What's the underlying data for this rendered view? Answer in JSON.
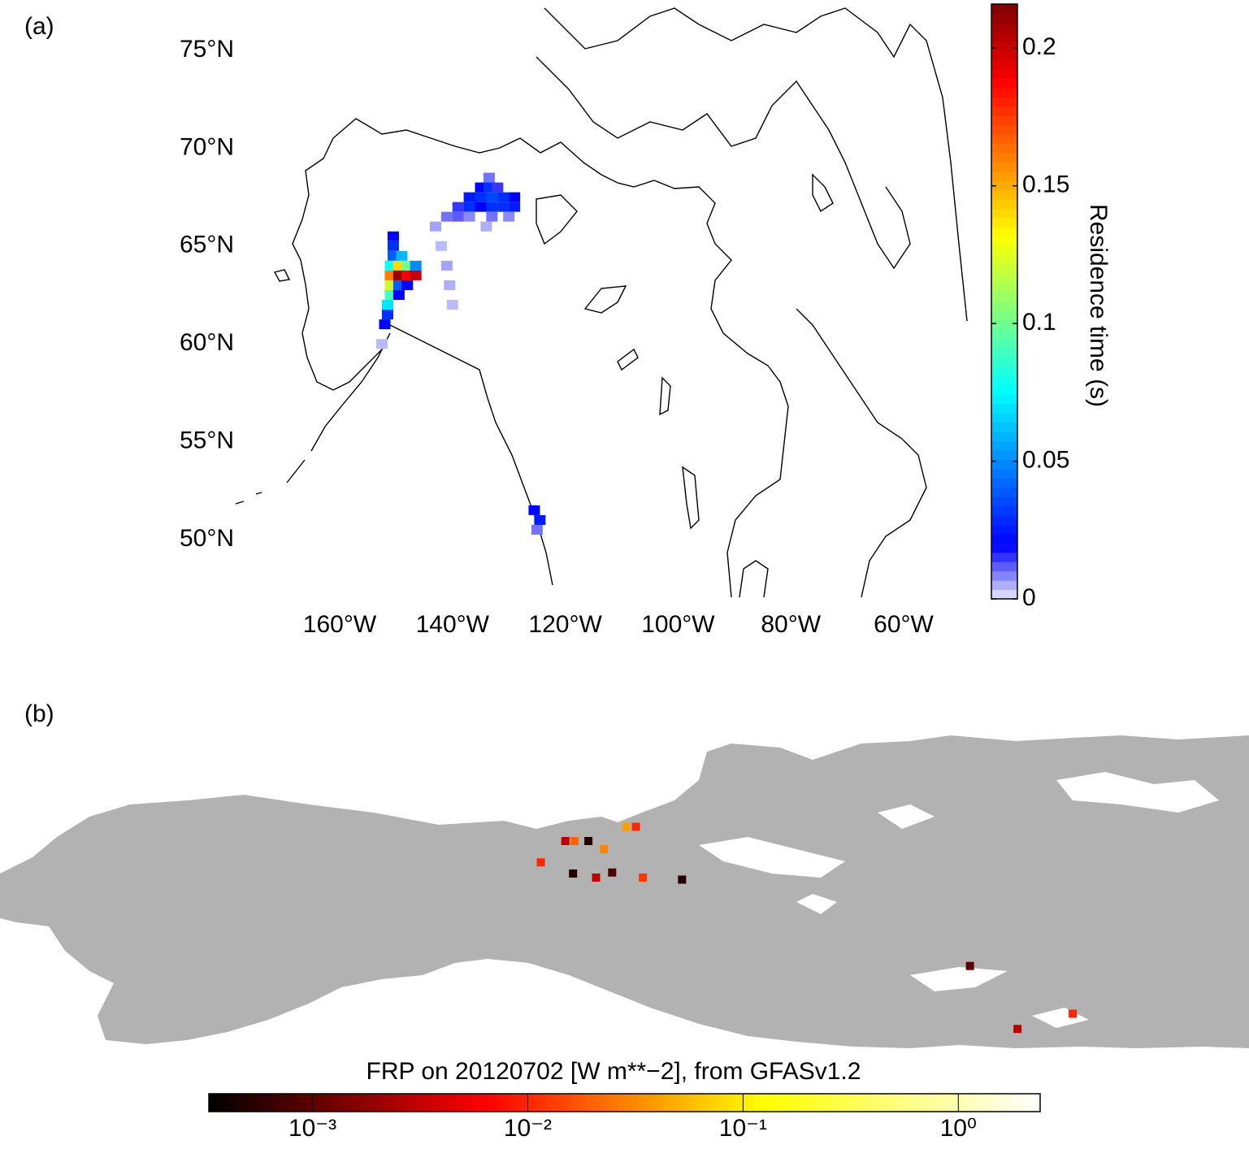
{
  "panels": [
    {
      "label": "(a)",
      "type": "heatmap",
      "lat_ticks": [
        {
          "value": 75,
          "label": "75°N"
        },
        {
          "value": 70,
          "label": "70°N"
        },
        {
          "value": 65,
          "label": "65°N"
        },
        {
          "value": 60,
          "label": "60°N"
        },
        {
          "value": 55,
          "label": "55°N"
        },
        {
          "value": 50,
          "label": "50°N"
        }
      ],
      "lon_ticks": [
        {
          "value": -160,
          "label": "160°W"
        },
        {
          "value": -140,
          "label": "140°W"
        },
        {
          "value": -120,
          "label": "120°W"
        },
        {
          "value": -100,
          "label": "100°W"
        },
        {
          "value": -80,
          "label": "80°W"
        },
        {
          "value": -60,
          "label": "60°W"
        }
      ],
      "colorbar": {
        "label": "Residence time (s)",
        "lim": [
          0,
          0.216
        ],
        "ticks": [
          0,
          0.05,
          0.1,
          0.15,
          0.2
        ],
        "colormap": "jet"
      },
      "cells": [
        {
          "lon": -150.5,
          "lat": 65.5,
          "value": 0.02
        },
        {
          "lon": -150.5,
          "lat": 65,
          "value": 0.03
        },
        {
          "lon": -150.5,
          "lat": 64.5,
          "value": 0.04
        },
        {
          "lon": -149,
          "lat": 64.5,
          "value": 0.06
        },
        {
          "lon": -151,
          "lat": 64,
          "value": 0.08
        },
        {
          "lon": -149.5,
          "lat": 64,
          "value": 0.14
        },
        {
          "lon": -148,
          "lat": 64,
          "value": 0.1
        },
        {
          "lon": -146.5,
          "lat": 64,
          "value": 0.05
        },
        {
          "lon": -151,
          "lat": 63.5,
          "value": 0.16
        },
        {
          "lon": -149.5,
          "lat": 63.5,
          "value": 0.21
        },
        {
          "lon": -148,
          "lat": 63.5,
          "value": 0.19
        },
        {
          "lon": -146.5,
          "lat": 63.5,
          "value": 0.2
        },
        {
          "lon": -151,
          "lat": 63,
          "value": 0.12
        },
        {
          "lon": -149.5,
          "lat": 63,
          "value": 0.04
        },
        {
          "lon": -148,
          "lat": 63,
          "value": 0.02
        },
        {
          "lon": -151,
          "lat": 62.5,
          "value": 0.09
        },
        {
          "lon": -149.5,
          "lat": 62.5,
          "value": 0.02
        },
        {
          "lon": -151.5,
          "lat": 62,
          "value": 0.07
        },
        {
          "lon": -151.5,
          "lat": 61.5,
          "value": 0.03
        },
        {
          "lon": -152,
          "lat": 61,
          "value": 0.02
        },
        {
          "lon": -152.5,
          "lat": 60,
          "value": 0.004
        },
        {
          "lon": -133.5,
          "lat": 68.5,
          "value": 0.01
        },
        {
          "lon": -135,
          "lat": 68,
          "value": 0.02
        },
        {
          "lon": -133.5,
          "lat": 68,
          "value": 0.03
        },
        {
          "lon": -132,
          "lat": 68,
          "value": 0.015
        },
        {
          "lon": -137,
          "lat": 67.5,
          "value": 0.025
        },
        {
          "lon": -135,
          "lat": 67.5,
          "value": 0.03
        },
        {
          "lon": -133,
          "lat": 67.5,
          "value": 0.035
        },
        {
          "lon": -131,
          "lat": 67.5,
          "value": 0.03
        },
        {
          "lon": -129,
          "lat": 67.5,
          "value": 0.02
        },
        {
          "lon": -139,
          "lat": 67,
          "value": 0.015
        },
        {
          "lon": -137,
          "lat": 67,
          "value": 0.03
        },
        {
          "lon": -135,
          "lat": 67,
          "value": 0.02
        },
        {
          "lon": -133,
          "lat": 67,
          "value": 0.03
        },
        {
          "lon": -131,
          "lat": 67,
          "value": 0.03
        },
        {
          "lon": -129,
          "lat": 67,
          "value": 0.025
        },
        {
          "lon": -141,
          "lat": 66.5,
          "value": 0.01
        },
        {
          "lon": -139,
          "lat": 66.5,
          "value": 0.012
        },
        {
          "lon": -137,
          "lat": 66.5,
          "value": 0.008
        },
        {
          "lon": -133,
          "lat": 66.5,
          "value": 0.01
        },
        {
          "lon": -130,
          "lat": 66.5,
          "value": 0.008
        },
        {
          "lon": -143,
          "lat": 66,
          "value": 0.006
        },
        {
          "lon": -134,
          "lat": 66,
          "value": 0.005
        },
        {
          "lon": -142,
          "lat": 65,
          "value": 0.004
        },
        {
          "lon": -141,
          "lat": 64,
          "value": 0.006
        },
        {
          "lon": -140.5,
          "lat": 63,
          "value": 0.005
        },
        {
          "lon": -140,
          "lat": 62,
          "value": 0.004
        },
        {
          "lon": -125.5,
          "lat": 51.5,
          "value": 0.02
        },
        {
          "lon": -124.5,
          "lat": 51,
          "value": 0.025
        },
        {
          "lon": -125,
          "lat": 50.5,
          "value": 0.01
        }
      ]
    },
    {
      "label": "(b)",
      "type": "points",
      "colorbar": {
        "title": "FRP on 20120702 [W m**−2], from GFASv1.2",
        "lim": [
          0.00033,
          2.4
        ],
        "scale": "log",
        "colormap": "hot",
        "ticks": [
          {
            "value": 0.001,
            "label": "10⁻³"
          },
          {
            "value": 0.01,
            "label": "10⁻²"
          },
          {
            "value": 0.1,
            "label": "10⁻¹"
          },
          {
            "value": 1,
            "label": "10⁰"
          }
        ]
      },
      "fires": [
        {
          "lon": -140.5,
          "lat": 67.2,
          "value": 0.003
        },
        {
          "lon": -139.2,
          "lat": 67.2,
          "value": 0.02
        },
        {
          "lon": -137.2,
          "lat": 67.2,
          "value": 0.0005
        },
        {
          "lon": -131.8,
          "lat": 68.6,
          "value": 0.04
        },
        {
          "lon": -130.4,
          "lat": 68.6,
          "value": 0.01
        },
        {
          "lon": -135,
          "lat": 66.4,
          "value": 0.03
        },
        {
          "lon": -144,
          "lat": 65.1,
          "value": 0.01
        },
        {
          "lon": -139.4,
          "lat": 64.0,
          "value": 0.0005
        },
        {
          "lon": -136.1,
          "lat": 63.6,
          "value": 0.003
        },
        {
          "lon": -133.8,
          "lat": 64.1,
          "value": 0.0008
        },
        {
          "lon": -129.4,
          "lat": 63.6,
          "value": 0.012
        },
        {
          "lon": -123.8,
          "lat": 63.4,
          "value": 0.0005
        },
        {
          "lon": -82.6,
          "lat": 54.9,
          "value": 0.001
        },
        {
          "lon": -75.8,
          "lat": 48.7,
          "value": 0.003
        },
        {
          "lon": -67.9,
          "lat": 50.2,
          "value": 0.01
        }
      ]
    }
  ]
}
